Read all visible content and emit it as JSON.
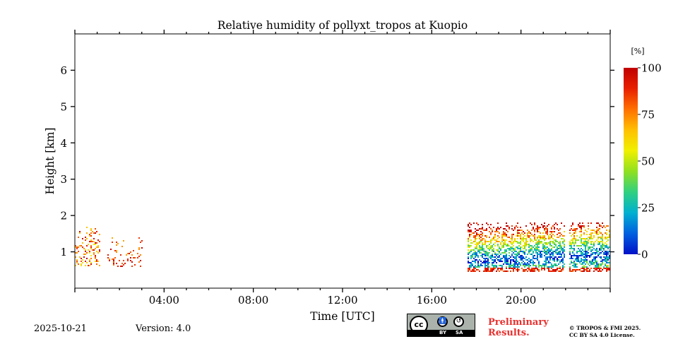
{
  "chart_data": {
    "type": "heatmap",
    "title": "Relative humidity of pollyxt_tropos at Kuopio",
    "xlabel": "Time [UTC]",
    "ylabel": "Height [km]",
    "xlim": [
      0,
      24
    ],
    "ylim": [
      0,
      7
    ],
    "x_ticks": [
      {
        "value": 4,
        "label": "04:00"
      },
      {
        "value": 8,
        "label": "08:00"
      },
      {
        "value": 12,
        "label": "12:00"
      },
      {
        "value": 16,
        "label": "16:00"
      },
      {
        "value": 20,
        "label": "20:00"
      }
    ],
    "y_ticks": [
      {
        "value": 1,
        "label": "1"
      },
      {
        "value": 2,
        "label": "2"
      },
      {
        "value": 3,
        "label": "3"
      },
      {
        "value": 4,
        "label": "4"
      },
      {
        "value": 5,
        "label": "5"
      },
      {
        "value": 6,
        "label": "6"
      }
    ],
    "colorbar": {
      "unit": "[%]",
      "range": [
        0,
        100
      ],
      "ticks": [
        {
          "value": 0,
          "label": "0"
        },
        {
          "value": 25,
          "label": "25"
        },
        {
          "value": 50,
          "label": "50"
        },
        {
          "value": 75,
          "label": "75"
        },
        {
          "value": 100,
          "label": "100"
        }
      ],
      "colormap": [
        "#0010c8",
        "#0060e0",
        "#00b0d0",
        "#30d080",
        "#90e020",
        "#f0f000",
        "#ffc000",
        "#ff7000",
        "#e82000",
        "#c00000"
      ]
    },
    "regions": [
      {
        "t_start": 0.0,
        "t_end": 1.1,
        "h_min": 0.6,
        "h_max": 1.7,
        "rh_min": 55,
        "rh_max": 100,
        "density": 0.28
      },
      {
        "t_start": 1.4,
        "t_end": 3.0,
        "h_min": 0.6,
        "h_max": 1.4,
        "rh_min": 70,
        "rh_max": 100,
        "density": 0.14
      },
      {
        "t_start": 17.6,
        "t_end": 24.0,
        "h_min": 0.45,
        "h_max": 1.8,
        "rh_min": 5,
        "rh_max": 100,
        "density": 0.55
      }
    ],
    "data_gaps": [
      {
        "t_start": 21.95,
        "t_end": 22.15
      }
    ],
    "grid": false,
    "legend": "none"
  },
  "footer": {
    "date": "2025-10-21",
    "version": "Version: 4.0",
    "preliminary": "Preliminary Results.",
    "copyright_line1": "© TROPOS & FMI 2025.",
    "copyright_line2": "CC BY SA 4.0 License.",
    "license_badge": {
      "logo": "cc",
      "by": "BY",
      "sa": "SA"
    }
  }
}
